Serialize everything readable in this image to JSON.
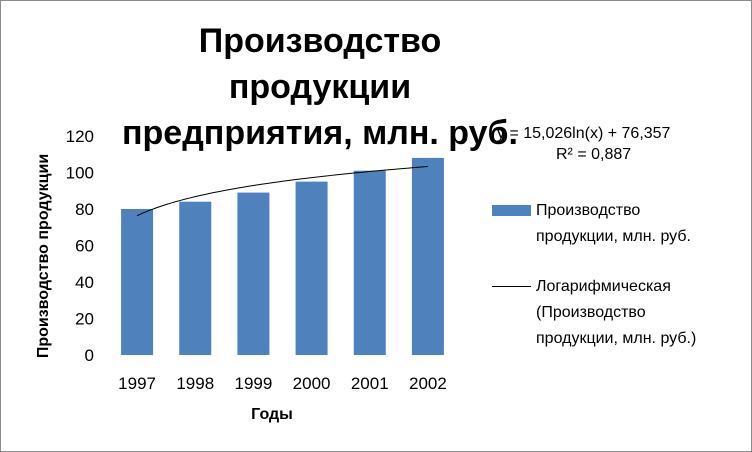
{
  "chart_data": {
    "type": "bar",
    "title_lines": [
      "Производство продукции",
      "предприятия, млн. руб."
    ],
    "xlabel": "Годы",
    "ylabel": "Производство продукции",
    "categories": [
      "1997",
      "1998",
      "1999",
      "2000",
      "2001",
      "2002"
    ],
    "series": [
      {
        "name": "Производство продукции, млн. руб.",
        "values": [
          80,
          84,
          89,
          95,
          101,
          108
        ],
        "color": "#4f81bd"
      }
    ],
    "trendline": {
      "type": "logarithmic",
      "name_lines": [
        "Логарифмическая",
        "(Производство",
        "продукции, млн. руб.)"
      ],
      "coef_a": 15.026,
      "coef_b": 76.357,
      "equation": "y = 15,026ln(x) + 76,357",
      "r_squared": "R² = 0,887",
      "color": "#000000"
    },
    "legend_label_lines": [
      "Производство",
      "продукции, млн. руб."
    ],
    "ylim": [
      0,
      120
    ],
    "yticks": [
      "0",
      "20",
      "40",
      "60",
      "80",
      "100",
      "120"
    ],
    "grid": false,
    "legend_position": "right"
  }
}
